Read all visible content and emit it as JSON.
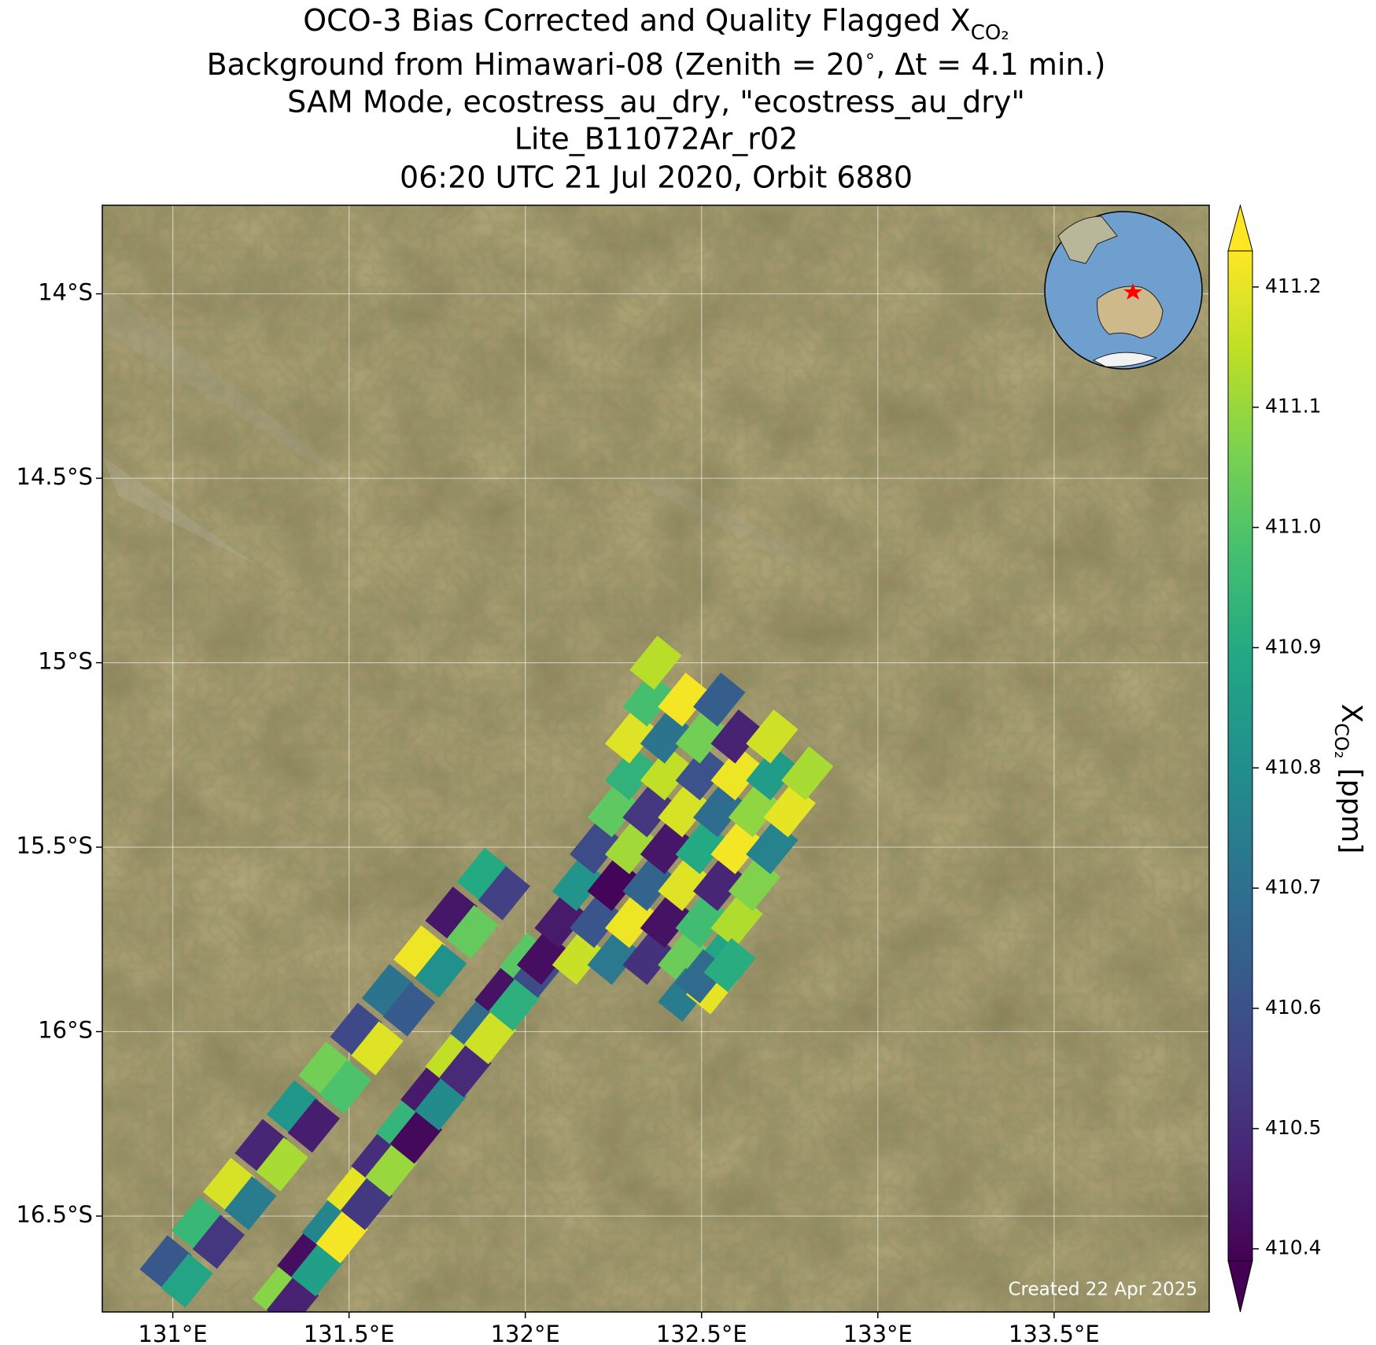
{
  "chart_data": {
    "type": "scatter",
    "title": [
      "OCO-3 Bias Corrected and Quality Flagged X",
      "Background from Himawari-08 (Zenith = 20$^\\circ$, Δt =  4.1 min.)",
      "SAM Mode, ecostress_au_dry, \"ecostress_au_dry\"",
      "Lite_B11072Ar_r02",
      "06:20 UTC 21 Jul 2020, Orbit 6880"
    ],
    "title_subscript": "CO₂",
    "footer": "Created 22 Apr 2025",
    "colorbar_label": {
      "symbol": "X",
      "subscript": "CO₂",
      "unit": "[ppm]"
    },
    "colormap": "viridis",
    "clim": [
      410.39,
      411.23
    ],
    "cticks": [
      410.4,
      410.5,
      410.6,
      410.7,
      410.8,
      410.9,
      {
        "value": 411.0,
        "label": "411.0"
      },
      411.1,
      411.2
    ],
    "xlim": [
      130.8,
      133.94
    ],
    "ylim": [
      -16.76,
      -13.76
    ],
    "xticks": [
      {
        "value": 131,
        "label": "131°E"
      },
      {
        "value": 131.5,
        "label": "131.5°E"
      },
      {
        "value": 132,
        "label": "132°E"
      },
      {
        "value": 132.5,
        "label": "132.5°E"
      },
      {
        "value": 133,
        "label": "133°E"
      },
      {
        "value": 133.5,
        "label": "133.5°E"
      }
    ],
    "yticks": [
      {
        "value": -14,
        "label": "14°S"
      },
      {
        "value": -14.5,
        "label": "14.5°S"
      },
      {
        "value": -15,
        "label": "15°S"
      },
      {
        "value": -15.5,
        "label": "15.5°S"
      },
      {
        "value": -16,
        "label": "16°S"
      },
      {
        "value": -16.5,
        "label": "16.5°S"
      }
    ],
    "grid": true,
    "x": [
      130.98,
      131.07,
      131.16,
      131.25,
      131.34,
      131.43,
      131.52,
      131.61,
      131.7,
      131.79,
      131.88,
      131.04,
      131.13,
      131.22,
      131.31,
      131.4,
      131.49,
      131.58,
      131.67,
      131.76,
      131.85,
      131.94,
      131.3,
      131.37,
      131.44,
      131.51,
      131.58,
      131.65,
      131.72,
      131.79,
      131.86,
      131.93,
      132.0,
      131.34,
      131.41,
      131.48,
      131.55,
      131.62,
      131.69,
      131.76,
      131.83,
      131.9,
      131.97,
      132.04,
      132.05,
      132.15,
      132.25,
      132.35,
      132.45,
      132.55,
      132.1,
      132.2,
      132.3,
      132.4,
      132.5,
      132.6,
      132.15,
      132.25,
      132.35,
      132.45,
      132.55,
      132.65,
      132.2,
      132.3,
      132.4,
      132.5,
      132.6,
      132.7,
      132.25,
      132.35,
      132.45,
      132.55,
      132.65,
      132.75,
      132.3,
      132.4,
      132.5,
      132.6,
      132.7,
      132.8,
      132.3,
      132.4,
      132.5,
      132.6,
      132.7,
      132.35,
      132.45,
      132.55,
      132.37,
      132.45,
      132.53,
      132.5,
      132.58
    ],
    "y": [
      -16.625,
      -16.52,
      -16.415,
      -16.31,
      -16.205,
      -16.1,
      -15.995,
      -15.89,
      -15.785,
      -15.68,
      -15.575,
      -16.675,
      -16.57,
      -16.465,
      -16.36,
      -16.255,
      -16.15,
      -16.045,
      -15.94,
      -15.835,
      -15.73,
      -15.625,
      -16.705,
      -16.615,
      -16.525,
      -16.435,
      -16.345,
      -16.255,
      -16.165,
      -16.075,
      -15.985,
      -15.895,
      -15.805,
      -16.735,
      -16.645,
      -16.555,
      -16.465,
      -16.375,
      -16.285,
      -16.195,
      -16.105,
      -16.015,
      -15.925,
      -15.835,
      -15.8,
      -15.8,
      -15.8,
      -15.8,
      -15.8,
      -15.8,
      -15.7,
      -15.7,
      -15.7,
      -15.7,
      -15.7,
      -15.7,
      -15.6,
      -15.6,
      -15.6,
      -15.6,
      -15.6,
      -15.6,
      -15.5,
      -15.5,
      -15.5,
      -15.5,
      -15.5,
      -15.5,
      -15.4,
      -15.4,
      -15.4,
      -15.4,
      -15.4,
      -15.4,
      -15.3,
      -15.3,
      -15.3,
      -15.3,
      -15.3,
      -15.3,
      -15.2,
      -15.2,
      -15.2,
      -15.2,
      -15.2,
      -15.1,
      -15.1,
      -15.1,
      -15.0,
      -15.9,
      -15.88,
      -15.85,
      -15.82
    ],
    "values": [
      410.62,
      410.95,
      411.18,
      410.48,
      410.83,
      411.05,
      410.57,
      410.71,
      411.21,
      410.44,
      410.9,
      410.88,
      410.52,
      410.74,
      411.12,
      410.46,
      410.99,
      411.19,
      410.63,
      410.81,
      411.03,
      410.55,
      411.08,
      410.42,
      410.77,
      411.2,
      410.5,
      410.94,
      410.45,
      411.15,
      410.68,
      410.43,
      411.01,
      410.47,
      410.86,
      411.22,
      410.53,
      411.1,
      410.41,
      410.79,
      410.49,
      411.17,
      410.92,
      410.58,
      410.42,
      411.16,
      410.73,
      410.51,
      411.04,
      410.88,
      410.45,
      410.61,
      411.21,
      410.43,
      410.97,
      411.13,
      410.82,
      410.4,
      410.66,
      411.19,
      410.48,
      411.07,
      410.58,
      411.11,
      410.44,
      410.9,
      411.22,
      410.76,
      411.02,
      410.52,
      411.18,
      410.69,
      411.09,
      411.2,
      410.93,
      411.15,
      410.6,
      411.21,
      410.85,
      411.12,
      411.19,
      410.71,
      411.05,
      410.47,
      411.17,
      410.98,
      411.22,
      410.64,
      411.14,
      410.74,
      411.2,
      410.68,
      410.91
    ]
  }
}
